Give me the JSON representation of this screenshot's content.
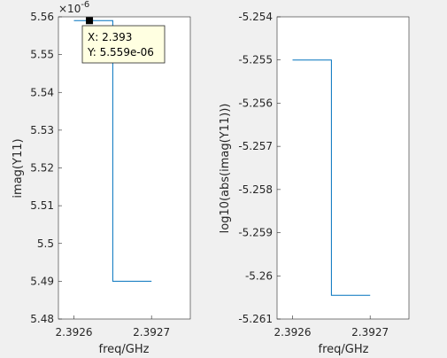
{
  "chart_data": [
    {
      "type": "line",
      "xlabel": "freq/GHz",
      "ylabel": "imag(Y11)",
      "exponent_label": "×10",
      "exponent_power": "-6",
      "xlim": [
        2.3926,
        2.37275
      ],
      "ylim": [
        5.48,
        5.56
      ],
      "x_ticks": [
        "2.3926",
        "2.3927"
      ],
      "y_ticks": [
        "5.56",
        "5.55",
        "5.54",
        "5.53",
        "5.52",
        "5.51",
        "5.5",
        "5.49",
        "5.48"
      ],
      "series": [
        {
          "x": [
            2.3926,
            2.39265,
            2.39265,
            2.3927
          ],
          "y": [
            5.559,
            5.559,
            5.49,
            5.49
          ]
        }
      ],
      "datatip": {
        "x_text": "X: 2.393",
        "y_text": "Y: 5.559e-06",
        "x": 2.39262,
        "y": 5.559
      }
    },
    {
      "type": "line",
      "xlabel": "freq/GHz",
      "ylabel": "log10(abs(imag(Y11)))",
      "ylim": [
        -5.261,
        -5.254
      ],
      "x_ticks": [
        "2.3926",
        "2.3927"
      ],
      "y_ticks": [
        "-5.254",
        "-5.255",
        "-5.256",
        "-5.257",
        "-5.258",
        "-5.259",
        "-5.26",
        "-5.261"
      ],
      "series": [
        {
          "x": [
            2.3926,
            2.39265,
            2.39265,
            2.3927
          ],
          "y": [
            -5.255,
            -5.255,
            -5.26045,
            -5.26045
          ]
        }
      ]
    }
  ],
  "colors": {
    "line": "#0072bd",
    "axis": "#262626",
    "panel": "#ffffff",
    "background": "#f0f0f0",
    "tip_bg": "#ffffe1"
  }
}
